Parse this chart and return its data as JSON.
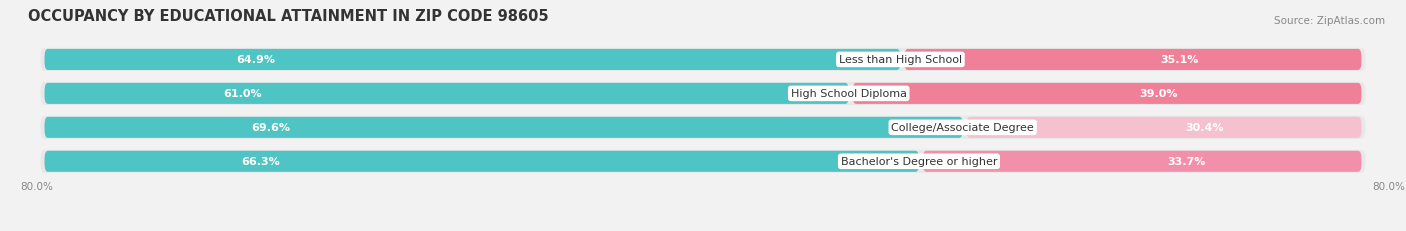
{
  "title": "OCCUPANCY BY EDUCATIONAL ATTAINMENT IN ZIP CODE 98605",
  "source": "Source: ZipAtlas.com",
  "categories": [
    "Less than High School",
    "High School Diploma",
    "College/Associate Degree",
    "Bachelor's Degree or higher"
  ],
  "owner_values": [
    64.9,
    61.0,
    69.6,
    66.3
  ],
  "renter_values": [
    35.1,
    39.0,
    30.4,
    33.7
  ],
  "owner_color": "#4EC4C4",
  "renter_color": "#F28FAA",
  "renter_light_colors": [
    "#F5B8C8",
    "#F5B8C8",
    "#F8D0DC",
    "#F5B8C8"
  ],
  "background_color": "#f2f2f2",
  "row_bg_color": "#e8e8e8",
  "xlim_left": 0,
  "xlim_right": 100,
  "x_left_label": "80.0%",
  "x_right_label": "80.0%",
  "title_fontsize": 10.5,
  "source_fontsize": 7.5,
  "bar_height": 0.62,
  "bar_value_fontsize": 8,
  "category_fontsize": 8
}
